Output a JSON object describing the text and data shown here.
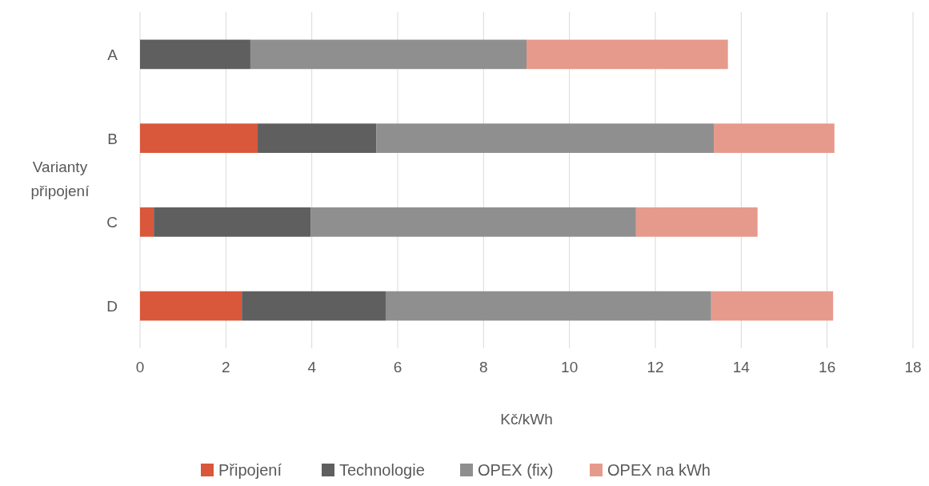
{
  "chart_data": {
    "type": "bar",
    "orientation": "horizontal",
    "stacked": true,
    "categories": [
      "A",
      "B",
      "C",
      "D"
    ],
    "series": [
      {
        "name": "Připojení",
        "color": "#d9573a",
        "values": [
          0,
          2.74,
          0.32,
          2.37
        ]
      },
      {
        "name": "Technologie",
        "color": "#5f5f5f",
        "values": [
          2.57,
          2.76,
          3.65,
          3.35
        ]
      },
      {
        "name": "OPEX (fix)",
        "color": "#8f8f8f",
        "values": [
          6.43,
          7.86,
          7.58,
          7.58
        ]
      },
      {
        "name": "OPEX na kWh",
        "color": "#e69a8c",
        "values": [
          4.69,
          2.81,
          2.83,
          2.84
        ]
      }
    ],
    "xlim": [
      0,
      18
    ],
    "xticks": [
      0,
      2,
      4,
      6,
      8,
      10,
      12,
      14,
      16,
      18
    ],
    "xlabel": "Kč/kWh",
    "ylabel": "Varianty připojení",
    "grid": "x",
    "legend": "bottom"
  }
}
